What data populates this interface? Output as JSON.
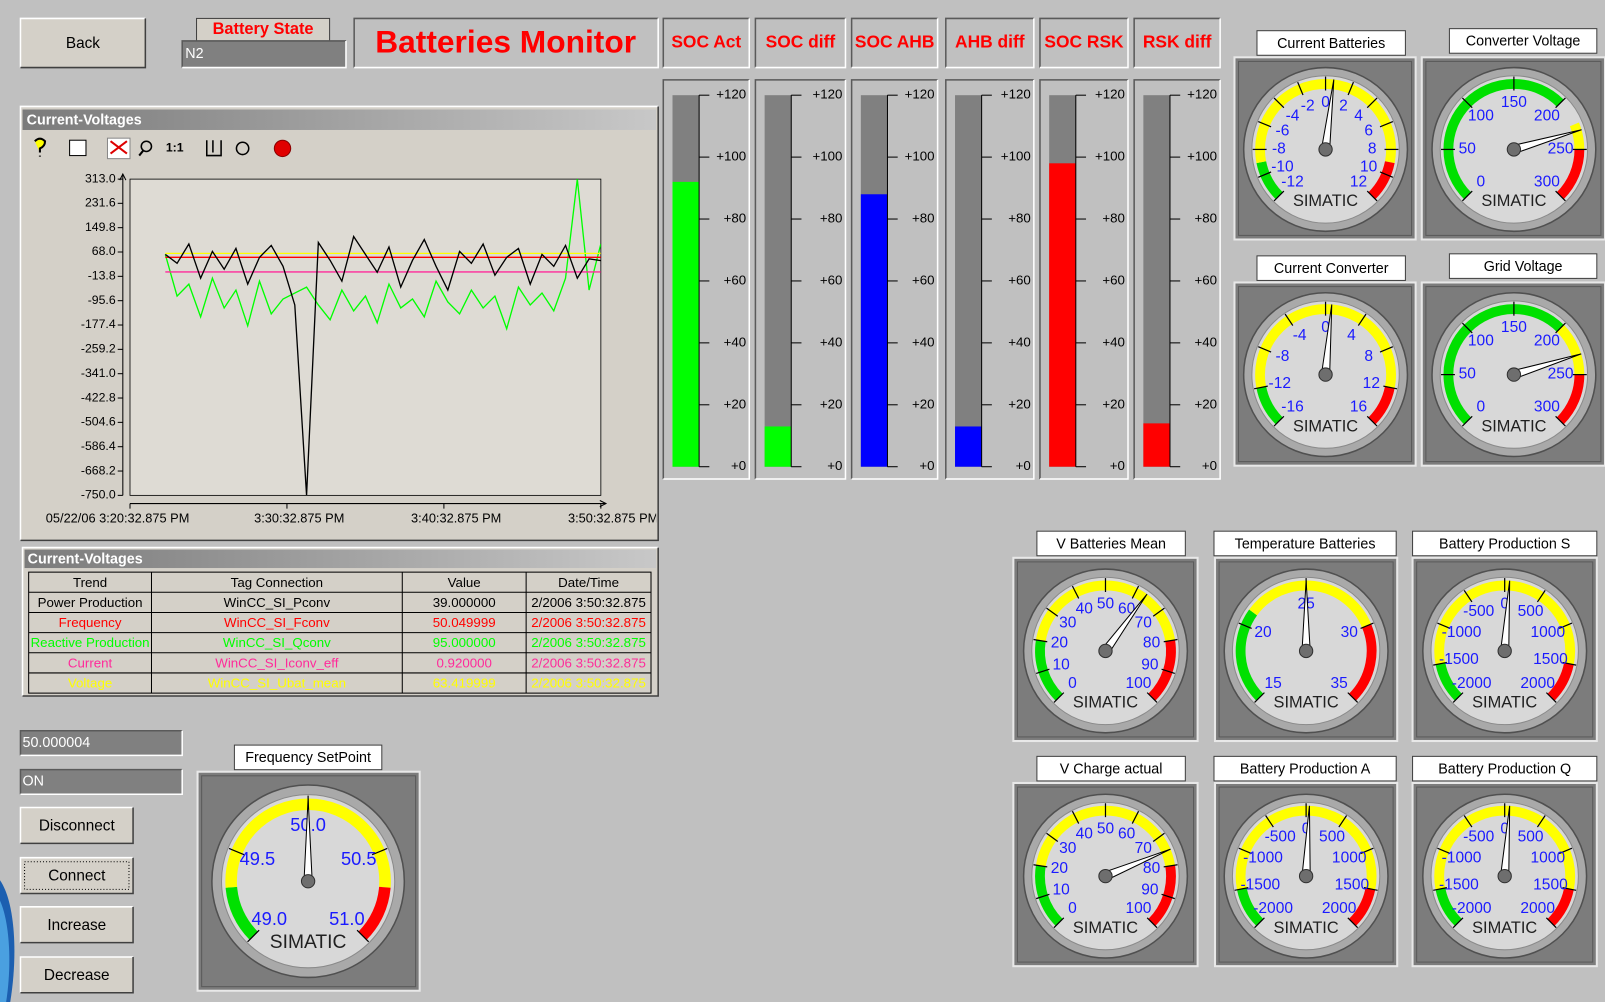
{
  "buttons": {
    "back": "Back",
    "disconnect": "Disconnect",
    "connect": "Connect",
    "increase": "Increase",
    "decrease": "Decrease"
  },
  "battery_state": {
    "label": "Battery State",
    "value": "N2"
  },
  "title": "Batteries Monitor",
  "level_bars": {
    "range": [
      0,
      120
    ],
    "ticks": [
      {
        "value": 120,
        "label": "+120"
      },
      {
        "value": 100,
        "label": "+100"
      },
      {
        "value": 80,
        "label": "+80"
      },
      {
        "value": 60,
        "label": "+60"
      },
      {
        "value": 40,
        "label": "+40"
      },
      {
        "value": 20,
        "label": "+20"
      },
      {
        "value": 0,
        "label": "+0"
      }
    ],
    "items": [
      {
        "name": "SOC Act",
        "value": 92,
        "color": "#00ff00"
      },
      {
        "name": "SOC diff",
        "value": 13,
        "color": "#00ff00"
      },
      {
        "name": "SOC AHB",
        "value": 88,
        "color": "#0000ff"
      },
      {
        "name": "AHB diff",
        "value": 13,
        "color": "#0000ff"
      },
      {
        "name": "SOC RSK",
        "value": 98,
        "color": "#ff0000"
      },
      {
        "name": "RSK diff",
        "value": 14,
        "color": "#ff0000"
      }
    ]
  },
  "trend": {
    "title": "Current-Voltages",
    "toolbar_text": "1:1",
    "ylim": [
      -750,
      313
    ],
    "yticks": [
      {
        "value": 313,
        "label": "313.0"
      },
      231.6,
      149.8,
      {
        "value": 68,
        "label": "68.0"
      },
      -13.8,
      -95.6,
      -177.4,
      -259.2,
      {
        "value": -341,
        "label": "-341.0"
      },
      -422.8,
      -504.6,
      -586.4,
      -668.2,
      {
        "value": -750,
        "label": "-750.0"
      }
    ],
    "xlim": [
      0,
      30
    ],
    "xticks": [
      {
        "value": 0,
        "label": "05/22/06  3:20:32.875 PM"
      },
      {
        "value": 10,
        "label": "3:30:32.875 PM"
      },
      {
        "value": 20,
        "label": "3:40:32.875 PM"
      },
      {
        "value": 30,
        "label": "3:50:32.875 PM"
      }
    ],
    "x": [
      2.25,
      3,
      3.75,
      4.5,
      5.25,
      6,
      6.75,
      7.5,
      8.25,
      9,
      9.75,
      10.5,
      11.25,
      12,
      12.75,
      13.5,
      14.25,
      15,
      15.75,
      16.5,
      17.25,
      18,
      18.75,
      19.5,
      20.25,
      21,
      21.75,
      22.5,
      23.25,
      24,
      24.75,
      25.5,
      26.25,
      27,
      27.75,
      28.5,
      29.25,
      30
    ],
    "series": [
      {
        "color": "#000000",
        "values": [
          60,
          30,
          95,
          -20,
          70,
          10,
          80,
          -40,
          50,
          90,
          20,
          -110,
          -750,
          100,
          40,
          -30,
          120,
          60,
          0,
          85,
          -50,
          40,
          110,
          20,
          -60,
          70,
          30,
          95,
          -10,
          50,
          80,
          -40,
          60,
          20,
          90,
          -20,
          45,
          39
        ]
      },
      {
        "color": "#ff0000",
        "values": [
          50.05,
          50.05,
          50.05,
          50.05,
          50.05,
          50.05,
          50.05,
          50.05,
          50.05,
          50.05,
          50.05,
          50.05,
          50.05,
          50.05,
          50.05,
          50.05,
          50.05,
          50.05,
          50.05,
          50.05,
          50.05,
          50.05,
          50.05,
          50.05,
          50.05,
          50.05,
          50.05,
          50.05,
          50.05,
          50.05,
          50.05,
          50.05,
          50.05,
          50.05,
          50.05,
          50.05,
          50.05,
          50.05
        ]
      },
      {
        "color": "#00ff00",
        "values": [
          60,
          -80,
          -40,
          -150,
          -20,
          -120,
          -60,
          -180,
          -30,
          -140,
          -90,
          -70,
          -50,
          -110,
          -160,
          -60,
          -130,
          -80,
          -170,
          -40,
          -120,
          -90,
          -150,
          -30,
          -100,
          -140,
          -60,
          -120,
          -80,
          -190,
          -50,
          -110,
          -70,
          -130,
          -20,
          313,
          -60,
          95
        ]
      },
      {
        "color": "#ff2a9a",
        "values": [
          0.92,
          0.92,
          0.92,
          0.92,
          0.92,
          0.92,
          0.92,
          0.92,
          0.92,
          0.92,
          0.92,
          0.92,
          0.92,
          0.92,
          0.92,
          0.92,
          0.92,
          0.92,
          0.92,
          0.92,
          0.92,
          0.92,
          0.92,
          0.92,
          0.92,
          0.92,
          0.92,
          0.92,
          0.92,
          0.92,
          0.92,
          0.92,
          0.92,
          0.92,
          0.92,
          0.92,
          0.92,
          0.92
        ]
      },
      {
        "color": "#ffff00",
        "values": [
          63.42,
          63.42,
          63.42,
          63.42,
          63.42,
          63.42,
          63.42,
          63.42,
          63.42,
          63.42,
          63.42,
          63.42,
          63.42,
          63.42,
          63.42,
          63.42,
          63.42,
          63.42,
          63.42,
          63.42,
          63.42,
          63.42,
          63.42,
          63.42,
          63.42,
          63.42,
          63.42,
          63.42,
          63.42,
          63.42,
          63.42,
          63.42,
          63.42,
          63.42,
          63.42,
          63.42,
          63.42,
          63.42
        ]
      }
    ]
  },
  "table": {
    "title": "Current-Voltages",
    "columns": [
      "Trend",
      "Tag Connection",
      "Value",
      "Date/Time"
    ],
    "row_colors": [
      "#000000",
      "#ff0000",
      "#00ff00",
      "#ff2a9a",
      "#ffff00"
    ],
    "rows": [
      [
        "Power Production",
        "WinCC_SI_Pconv",
        "39.000000",
        "2/2006 3:50:32.875"
      ],
      [
        "Frequency",
        "WinCC_SI_Fconv",
        "50.049999",
        "2/2006 3:50:32.875"
      ],
      [
        "Reactive Production",
        "WinCC_SI_Qconv",
        "95.000000",
        "2/2006 3:50:32.875"
      ],
      [
        "Current",
        "WinCC_SI_Iconv_eff",
        "0.920000",
        "2/2006 3:50:32.875"
      ],
      [
        "Voltage",
        "WinCC_SI_Ubat_mean",
        "63.419999",
        "2/2006 3:50:32.875"
      ]
    ]
  },
  "fields": [
    "50.000004",
    "ON"
  ],
  "brand": "SIMATIC",
  "gauges": [
    {
      "title": "Current Batteries",
      "range": [
        -12,
        12
      ],
      "labels": [
        -12,
        -10,
        -8,
        -6,
        -4,
        -2,
        0,
        2,
        4,
        6,
        8,
        10,
        12
      ],
      "value": 0.6,
      "bands": [
        {
          "from": -12,
          "to": -9,
          "color": "#00e000"
        },
        {
          "from": -9,
          "to": 9,
          "color": "#ffff00"
        },
        {
          "from": 9,
          "to": 12,
          "color": "#ff0000"
        }
      ]
    },
    {
      "title": "Converter Voltage",
      "range": [
        0,
        300
      ],
      "labels": [
        0,
        50,
        100,
        150,
        200,
        250,
        300
      ],
      "value": 232,
      "bands": [
        {
          "from": 0,
          "to": 200,
          "color": "#00e000"
        },
        {
          "from": 225,
          "to": 250,
          "color": "#ffff00"
        },
        {
          "from": 250,
          "to": 300,
          "color": "#ff0000"
        }
      ]
    },
    {
      "title": "Current Converter",
      "range": [
        -16,
        16
      ],
      "labels": [
        -16,
        -12,
        -8,
        -4,
        0,
        4,
        8,
        12,
        16
      ],
      "value": 0.6,
      "bands": [
        {
          "from": -16,
          "to": -12,
          "color": "#00e000"
        },
        {
          "from": -12,
          "to": 12,
          "color": "#ffff00"
        },
        {
          "from": 12,
          "to": 16,
          "color": "#ff0000"
        }
      ]
    },
    {
      "title": "Grid Voltage",
      "range": [
        0,
        300
      ],
      "labels": [
        0,
        50,
        100,
        150,
        200,
        250,
        300
      ],
      "value": 231,
      "bands": [
        {
          "from": 0,
          "to": 200,
          "color": "#00e000"
        },
        {
          "from": 200,
          "to": 250,
          "color": "#ffff00"
        },
        {
          "from": 250,
          "to": 300,
          "color": "#ff0000"
        }
      ]
    },
    {
      "title": "V Batteries Mean",
      "range": [
        0,
        100
      ],
      "labels": [
        0,
        10,
        20,
        30,
        40,
        50,
        60,
        70,
        80,
        90,
        100
      ],
      "value": 63.4,
      "bands": [
        {
          "from": 0,
          "to": 20,
          "color": "#00e000"
        },
        {
          "from": 20,
          "to": 80,
          "color": "#ffff00"
        },
        {
          "from": 80,
          "to": 100,
          "color": "#ff0000"
        }
      ]
    },
    {
      "title": "Temperature Batteries",
      "range": [
        15,
        35
      ],
      "labels": [
        15,
        20,
        25,
        30,
        35
      ],
      "value": 25,
      "bands": [
        {
          "from": 15,
          "to": 21,
          "color": "#00e000"
        },
        {
          "from": 21,
          "to": 30,
          "color": "#ffff00"
        },
        {
          "from": 30,
          "to": 35,
          "color": "#ff0000"
        }
      ]
    },
    {
      "title": "Battery Production S",
      "range": [
        -2000,
        2000
      ],
      "labels": [
        -2000,
        -1500,
        -1000,
        -500,
        0,
        500,
        1000,
        1500,
        2000
      ],
      "value": 60,
      "bands": [
        {
          "from": -2000,
          "to": -1500,
          "color": "#00e000"
        },
        {
          "from": -1500,
          "to": 1500,
          "color": "#ffff00"
        },
        {
          "from": 1500,
          "to": 2000,
          "color": "#ff0000"
        }
      ]
    },
    {
      "title": "V Charge actual",
      "range": [
        0,
        100
      ],
      "labels": [
        0,
        10,
        20,
        30,
        40,
        50,
        60,
        70,
        80,
        90,
        100
      ],
      "value": 75,
      "bands": [
        {
          "from": 0,
          "to": 20,
          "color": "#00e000"
        },
        {
          "from": 20,
          "to": 80,
          "color": "#ffff00"
        },
        {
          "from": 80,
          "to": 100,
          "color": "#ff0000"
        }
      ]
    },
    {
      "title": "Battery Production A",
      "range": [
        -2000,
        2000
      ],
      "labels": [
        -2000,
        -1500,
        -1000,
        -500,
        0,
        500,
        1000,
        1500,
        2000
      ],
      "value": 40,
      "bands": [
        {
          "from": -2000,
          "to": -1500,
          "color": "#00e000"
        },
        {
          "from": -1500,
          "to": 1500,
          "color": "#ffff00"
        },
        {
          "from": 1500,
          "to": 2000,
          "color": "#ff0000"
        }
      ]
    },
    {
      "title": "Battery Production Q",
      "range": [
        -2000,
        2000
      ],
      "labels": [
        -2000,
        -1500,
        -1000,
        -500,
        0,
        500,
        1000,
        1500,
        2000
      ],
      "value": 60,
      "bands": [
        {
          "from": -2000,
          "to": -1500,
          "color": "#00e000"
        },
        {
          "from": -1500,
          "to": 1500,
          "color": "#ffff00"
        },
        {
          "from": 1500,
          "to": 2000,
          "color": "#ff0000"
        }
      ]
    },
    {
      "title": "Frequency SetPoint",
      "range": [
        49,
        51
      ],
      "labels": [
        {
          "value": 49,
          "label": "49.0"
        },
        49.5,
        {
          "value": 50,
          "label": "50.0"
        },
        50.5,
        {
          "value": 51,
          "label": "51.0"
        }
      ],
      "value": 50,
      "bands": [
        {
          "from": 49,
          "to": 49.3,
          "color": "#00e000"
        },
        {
          "from": 49.3,
          "to": 50.7,
          "color": "#ffff00"
        },
        {
          "from": 50.7,
          "to": 51,
          "color": "#ff0000"
        }
      ]
    }
  ]
}
